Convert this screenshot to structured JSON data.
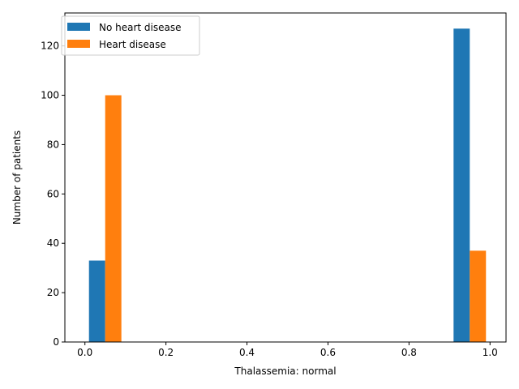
{
  "chart_data": {
    "type": "bar",
    "xlabel": "Thalassemia: normal",
    "ylabel": "Number of patients",
    "xlim": [
      -0.0495,
      1.0395
    ],
    "ylim": [
      0,
      133.35
    ],
    "x_ticks": [
      0.0,
      0.2,
      0.4,
      0.6,
      0.8,
      1.0
    ],
    "x_tick_labels": [
      "0.0",
      "0.2",
      "0.4",
      "0.6",
      "0.8",
      "1.0"
    ],
    "y_ticks": [
      0,
      20,
      40,
      60,
      80,
      100,
      120
    ],
    "y_tick_labels": [
      "0",
      "20",
      "40",
      "60",
      "80",
      "100",
      "120"
    ],
    "grid": false,
    "legend_position": "top-left",
    "series": [
      {
        "name": "No heart disease",
        "color": "#1f77b4",
        "bars": [
          {
            "x_start": 0.01,
            "x_end": 0.05,
            "value": 33
          },
          {
            "x_start": 0.91,
            "x_end": 0.95,
            "value": 127
          }
        ]
      },
      {
        "name": "Heart disease",
        "color": "#ff7f0e",
        "bars": [
          {
            "x_start": 0.05,
            "x_end": 0.09,
            "value": 100
          },
          {
            "x_start": 0.95,
            "x_end": 0.99,
            "value": 37
          }
        ]
      }
    ]
  }
}
